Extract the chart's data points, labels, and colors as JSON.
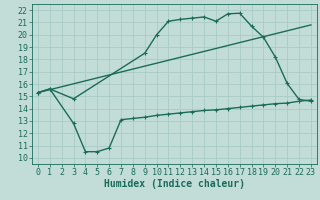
{
  "bg_color": "#c2ddd8",
  "grid_color": "#aaccc6",
  "line_color": "#1a6b5a",
  "line_width": 1.0,
  "marker_size": 2.5,
  "xlabel": "Humidex (Indice chaleur)",
  "xlabel_fontsize": 7,
  "tick_fontsize": 6,
  "xlim": [
    -0.5,
    23.5
  ],
  "ylim": [
    9.5,
    22.5
  ],
  "xticks": [
    0,
    1,
    2,
    3,
    4,
    5,
    6,
    7,
    8,
    9,
    10,
    11,
    12,
    13,
    14,
    15,
    16,
    17,
    18,
    19,
    20,
    21,
    22,
    23
  ],
  "yticks": [
    10,
    11,
    12,
    13,
    14,
    15,
    16,
    17,
    18,
    19,
    20,
    21,
    22
  ],
  "curve1_x": [
    0,
    1,
    3,
    9,
    10,
    11,
    12,
    13,
    14,
    15,
    16,
    17,
    18,
    19,
    20,
    21,
    22,
    23
  ],
  "curve1_y": [
    15.3,
    15.6,
    14.8,
    18.5,
    20.0,
    21.1,
    21.25,
    21.35,
    21.45,
    21.1,
    21.7,
    21.75,
    20.7,
    19.8,
    18.2,
    16.05,
    14.75,
    14.6
  ],
  "curve2_x": [
    0,
    23
  ],
  "curve2_y": [
    15.3,
    20.8
  ],
  "curve3_x": [
    0,
    1,
    3,
    4,
    5,
    6,
    7,
    8,
    9,
    10,
    11,
    12,
    13,
    14,
    15,
    16,
    17,
    18,
    19,
    20,
    21,
    22,
    23
  ],
  "curve3_y": [
    15.3,
    15.6,
    12.8,
    10.5,
    10.5,
    10.8,
    13.1,
    13.2,
    13.3,
    13.45,
    13.55,
    13.65,
    13.75,
    13.85,
    13.9,
    14.0,
    14.1,
    14.2,
    14.3,
    14.4,
    14.45,
    14.6,
    14.7
  ]
}
